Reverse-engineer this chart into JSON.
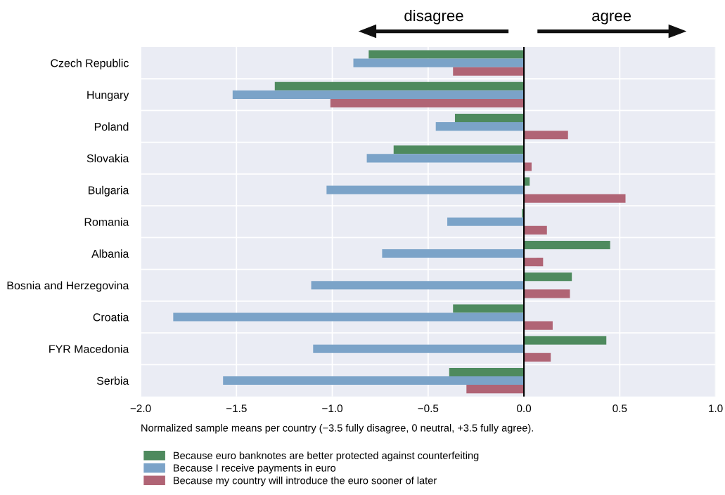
{
  "chart_data": {
    "type": "bar",
    "orientation": "horizontal",
    "categories": [
      "Czech Republic",
      "Hungary",
      "Poland",
      "Slovakia",
      "Bulgaria",
      "Romania",
      "Albania",
      "Bosnia and Herzegovina",
      "Croatia",
      "FYR Macedonia",
      "Serbia"
    ],
    "series": [
      {
        "name": "Because euro banknotes are better protected against counterfeiting",
        "color": "#4e8a5e",
        "values": [
          -0.81,
          -1.3,
          -0.36,
          -0.68,
          0.03,
          -0.01,
          0.45,
          0.25,
          -0.37,
          0.43,
          -0.39
        ]
      },
      {
        "name": "Because I receive payments in euro",
        "color": "#7ba3c8",
        "values": [
          -0.89,
          -1.52,
          -0.46,
          -0.82,
          -1.03,
          -0.4,
          -0.74,
          -1.11,
          -1.83,
          -1.1,
          -1.57
        ]
      },
      {
        "name": "Because my country will introduce the euro sooner of later",
        "color": "#b06475",
        "values": [
          -0.37,
          -1.01,
          0.23,
          0.04,
          0.53,
          0.12,
          0.1,
          0.24,
          0.15,
          0.14,
          -0.3
        ]
      }
    ],
    "xlim": [
      -2.0,
      1.0
    ],
    "xticks": [
      {
        "value": -2.0,
        "label": "−2.0"
      },
      {
        "value": -1.5,
        "label": "−1.5"
      },
      {
        "value": -1.0,
        "label": "−1.0"
      },
      {
        "value": -0.5,
        "label": "−0.5"
      },
      {
        "value": 0.0,
        "label": "0.0"
      },
      {
        "value": 0.5,
        "label": "0.5"
      },
      {
        "value": 1.0,
        "label": "1.0"
      }
    ],
    "xlabel": "Normalized sample means per country (−3.5 fully disagree, 0 neutral, +3.5 fully agree).",
    "annotations": [
      "disagree",
      "agree"
    ],
    "ref_lines": [
      {
        "axis": "x",
        "value": 0.0,
        "color": "#000000"
      }
    ],
    "grid": true,
    "legend": "bottom"
  }
}
